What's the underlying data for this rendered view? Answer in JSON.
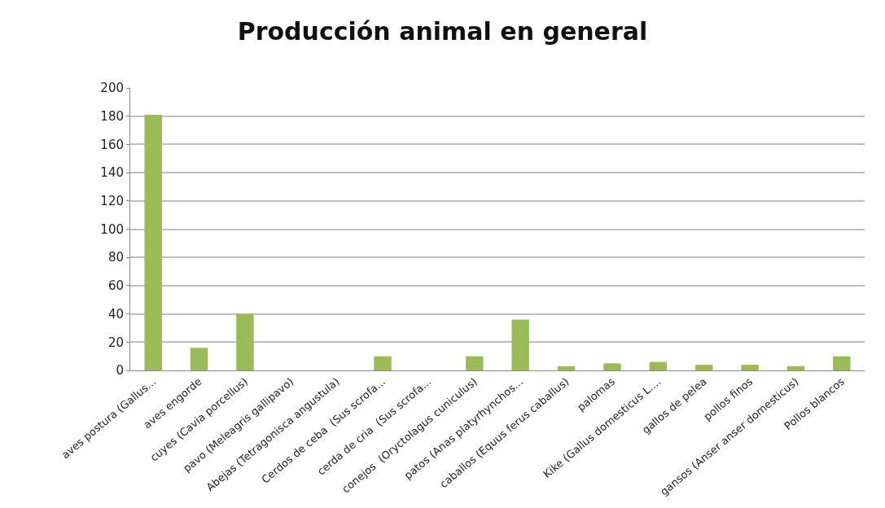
{
  "chart_data": {
    "type": "bar",
    "title": "Producción animal en general",
    "categories": [
      "aves postura (Gallus...",
      "aves engorde",
      "cuyes (Cavia porcellus)",
      "pavo (Meleagris gallipavo)",
      "Abejas (Tetragonisca angustula)",
      "Cerdos de ceba  (Sus scrofa...",
      "cerda de cria  (Sus scrofa...",
      "conejos  (Oryctolagus cuniculus)",
      "patos (Anas platyrhynchos...",
      "caballos (Equus ferus caballus)",
      "palomas",
      "Kike (Gallus domesticus L....",
      "gallos de pelea",
      "pollos finos",
      "gansos (Anser anser domesticus)",
      "Pollos blancos"
    ],
    "values": [
      181,
      16,
      40,
      0,
      0,
      10,
      0,
      10,
      36,
      3,
      5,
      6,
      4,
      4,
      3,
      10
    ],
    "color": "#9bbb59",
    "ylim": [
      0,
      200
    ],
    "yticks": [
      0,
      20,
      40,
      60,
      80,
      100,
      120,
      140,
      160,
      180,
      200
    ],
    "grid": "y",
    "legend": false
  }
}
